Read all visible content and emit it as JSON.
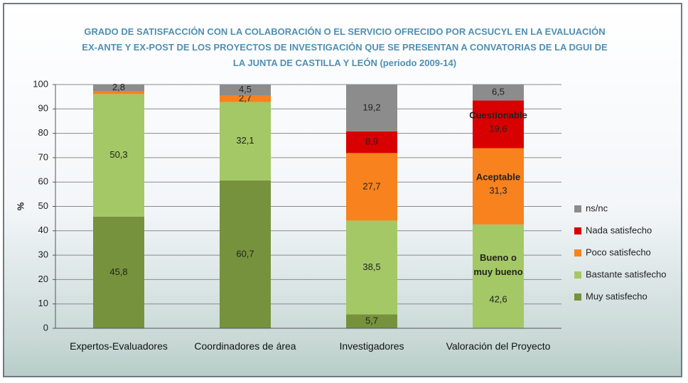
{
  "chart_data": {
    "type": "stacked_bar",
    "title": "GRADO DE SATISFACCIÓN CON LA COLABORACIÓN O EL SERVICIO OFRECIDO POR ACSUCYL EN LA EVALUACIÓN  EX-ANTE Y EX-POST DE LOS PROYECTOS DE INVESTIGACIÓN QUE SE  PRESENTAN A CONVATORIAS DE LA DGUI DE LA JUNTA DE CASTILLA Y LEÓN  (periodo  2009-14)",
    "y_label": "%",
    "categories": [
      "Expertos-Evaluadores",
      "Coordinadores de área",
      "Investigadores",
      "Valoración del Proyecto"
    ],
    "series": [
      {
        "name": "Muy satisfecho",
        "color": "#76923c",
        "values": [
          45.8,
          60.7,
          5.7,
          0
        ],
        "value_labels": [
          "45,8",
          "60,7",
          "5,7",
          null
        ]
      },
      {
        "name": "Bastante satisfecho",
        "color": "#a4c865",
        "values": [
          50.3,
          32.1,
          38.5,
          42.6
        ],
        "value_labels": [
          "50,3",
          "32,1",
          "38,5",
          "42,6"
        ]
      },
      {
        "name": "Poco satisfecho",
        "color": "#f7821e",
        "values": [
          1.1,
          2.7,
          27.7,
          31.3
        ],
        "value_labels": [
          null,
          "2,7",
          "27,7",
          "31,3"
        ]
      },
      {
        "name": "Nada satisfecho",
        "color": "#d80000",
        "values": [
          0,
          0,
          8.9,
          19.6
        ],
        "value_labels": [
          null,
          null,
          "8,9",
          "19,6"
        ]
      },
      {
        "name": "ns/nc",
        "color": "#8c8c8c",
        "values": [
          2.8,
          4.5,
          19.2,
          6.5
        ],
        "value_labels": [
          "2,8",
          "4,5",
          "19,2",
          "6,5"
        ]
      }
    ],
    "annotations": [
      "Bueno o muy bueno",
      "Aceptable",
      "Cuestionable"
    ],
    "ylim": [
      0,
      100
    ],
    "yticks": [
      0,
      10,
      20,
      30,
      40,
      50,
      60,
      70,
      80,
      90,
      100
    ],
    "grid": true,
    "legend": "right"
  }
}
